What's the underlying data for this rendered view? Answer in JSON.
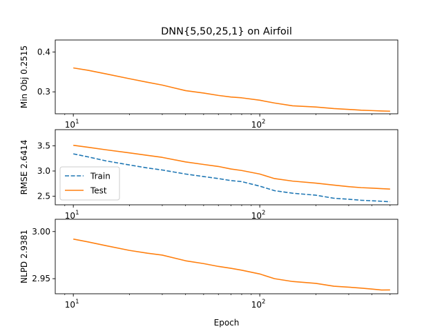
{
  "title": "DNN{5,50,25,1} on Airfoil",
  "xlabel": "Epoch",
  "colors": {
    "train": "#1f77b4",
    "test": "#ff7f0e"
  },
  "chart_data": [
    {
      "type": "line",
      "panel": "top",
      "ylabel": "Min Obj 0.2515",
      "xscale": "log",
      "xlim": [
        8,
        550
      ],
      "ylim": [
        0.245,
        0.43
      ],
      "yticks": [
        0.3,
        0.4
      ],
      "ytick_labels": [
        "0.3",
        "0.4"
      ],
      "xticks": [
        10,
        100
      ],
      "xtick_labels": [
        {
          "base": "10",
          "exp": "1"
        },
        {
          "base": "10",
          "exp": "2"
        }
      ],
      "series": [
        {
          "color": "test",
          "style": "solid",
          "points": [
            [
              10,
              0.36
            ],
            [
              12,
              0.354
            ],
            [
              15,
              0.345
            ],
            [
              20,
              0.333
            ],
            [
              25,
              0.324
            ],
            [
              30,
              0.317
            ],
            [
              40,
              0.303
            ],
            [
              50,
              0.297
            ],
            [
              60,
              0.291
            ],
            [
              70,
              0.287
            ],
            [
              80,
              0.285
            ],
            [
              100,
              0.279
            ],
            [
              120,
              0.272
            ],
            [
              150,
              0.265
            ],
            [
              200,
              0.262
            ],
            [
              250,
              0.258
            ],
            [
              300,
              0.256
            ],
            [
              350,
              0.254
            ],
            [
              400,
              0.253
            ],
            [
              450,
              0.252
            ],
            [
              500,
              0.2515
            ]
          ]
        }
      ]
    },
    {
      "type": "line",
      "panel": "middle",
      "ylabel": "RMSE 2.6414",
      "xscale": "log",
      "xlim": [
        8,
        550
      ],
      "ylim": [
        2.33,
        3.82
      ],
      "yticks": [
        2.5,
        3.0,
        3.5
      ],
      "ytick_labels": [
        "2.5",
        "3.0",
        "3.5"
      ],
      "xticks": [
        10,
        100
      ],
      "xtick_labels": [
        {
          "base": "10",
          "exp": "1"
        },
        {
          "base": "10",
          "exp": "2"
        }
      ],
      "legend": {
        "position": "left",
        "entries": [
          {
            "label": "Train",
            "color": "train",
            "style": "dashed"
          },
          {
            "label": "Test",
            "color": "test",
            "style": "solid"
          }
        ]
      },
      "series": [
        {
          "name": "Train",
          "color": "train",
          "style": "dashed",
          "points": [
            [
              10,
              3.34
            ],
            [
              12,
              3.28
            ],
            [
              15,
              3.2
            ],
            [
              20,
              3.12
            ],
            [
              25,
              3.06
            ],
            [
              30,
              3.02
            ],
            [
              40,
              2.94
            ],
            [
              50,
              2.89
            ],
            [
              60,
              2.85
            ],
            [
              70,
              2.81
            ],
            [
              80,
              2.79
            ],
            [
              100,
              2.7
            ],
            [
              120,
              2.61
            ],
            [
              150,
              2.56
            ],
            [
              200,
              2.52
            ],
            [
              250,
              2.46
            ],
            [
              300,
              2.44
            ],
            [
              350,
              2.42
            ],
            [
              400,
              2.41
            ],
            [
              450,
              2.4
            ],
            [
              500,
              2.39
            ]
          ]
        },
        {
          "name": "Test",
          "color": "test",
          "style": "solid",
          "points": [
            [
              10,
              3.51
            ],
            [
              12,
              3.47
            ],
            [
              15,
              3.42
            ],
            [
              20,
              3.36
            ],
            [
              25,
              3.31
            ],
            [
              30,
              3.27
            ],
            [
              40,
              3.18
            ],
            [
              50,
              3.13
            ],
            [
              60,
              3.09
            ],
            [
              70,
              3.04
            ],
            [
              80,
              3.01
            ],
            [
              100,
              2.94
            ],
            [
              120,
              2.85
            ],
            [
              150,
              2.8
            ],
            [
              200,
              2.76
            ],
            [
              250,
              2.72
            ],
            [
              300,
              2.69
            ],
            [
              350,
              2.67
            ],
            [
              400,
              2.66
            ],
            [
              450,
              2.65
            ],
            [
              500,
              2.6414
            ]
          ]
        }
      ]
    },
    {
      "type": "line",
      "panel": "bottom",
      "ylabel": "NLPD 2.9381",
      "xscale": "log",
      "xlim": [
        8,
        550
      ],
      "ylim": [
        2.934,
        3.013
      ],
      "yticks": [
        2.95,
        3.0
      ],
      "ytick_labels": [
        "2.95",
        "3.00"
      ],
      "xticks": [
        10,
        100
      ],
      "xtick_labels": [
        {
          "base": "10",
          "exp": "1"
        },
        {
          "base": "10",
          "exp": "2"
        }
      ],
      "series": [
        {
          "color": "test",
          "style": "solid",
          "points": [
            [
              10,
              2.992
            ],
            [
              12,
              2.989
            ],
            [
              15,
              2.985
            ],
            [
              20,
              2.98
            ],
            [
              25,
              2.977
            ],
            [
              30,
              2.975
            ],
            [
              40,
              2.969
            ],
            [
              50,
              2.966
            ],
            [
              60,
              2.963
            ],
            [
              70,
              2.961
            ],
            [
              80,
              2.959
            ],
            [
              100,
              2.955
            ],
            [
              120,
              2.95
            ],
            [
              150,
              2.947
            ],
            [
              200,
              2.945
            ],
            [
              250,
              2.942
            ],
            [
              300,
              2.941
            ],
            [
              350,
              2.94
            ],
            [
              400,
              2.939
            ],
            [
              450,
              2.938
            ],
            [
              500,
              2.9381
            ]
          ]
        }
      ]
    }
  ]
}
